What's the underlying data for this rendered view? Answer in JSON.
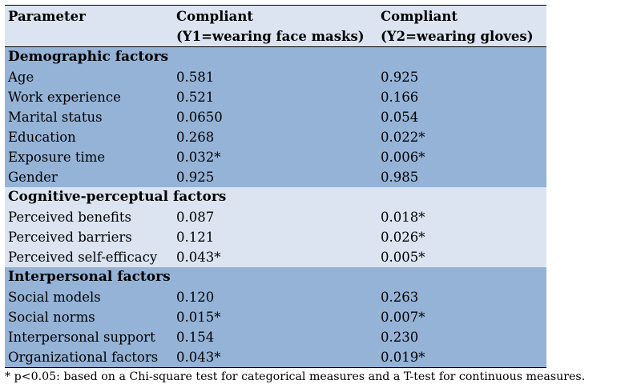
{
  "header": {
    "param": "Parameter",
    "y1_line1": "Compliant",
    "y1_line2": "(Y1=wearing face masks)",
    "y2_line1": "Compliant",
    "y2_line2": "(Y2=wearing gloves)"
  },
  "sections": [
    {
      "title": "Demographic factors",
      "rows": [
        {
          "param": "Age",
          "y1": "0.581",
          "y2": "0.925"
        },
        {
          "param": "Work experience",
          "y1": "0.521",
          "y2": "0.166"
        },
        {
          "param": "Marital status",
          "y1": "0.0650",
          "y2": "0.054"
        },
        {
          "param": "Education",
          "y1": "0.268",
          "y2": "0.022*"
        },
        {
          "param": "Exposure time",
          "y1": "0.032*",
          "y2": "0.006*"
        },
        {
          "param": "Gender",
          "y1": "0.925",
          "y2": "0.985"
        }
      ]
    },
    {
      "title": "Cognitive-perceptual factors",
      "rows": [
        {
          "param": "Perceived benefits",
          "y1": "0.087",
          "y2": "0.018*"
        },
        {
          "param": "Perceived barriers",
          "y1": "0.121",
          "y2": "0.026*"
        },
        {
          "param": "Perceived self-efficacy",
          "y1": "0.043*",
          "y2": "0.005*"
        }
      ]
    },
    {
      "title": "Interpersonal factors",
      "rows": [
        {
          "param": "Social models",
          "y1": "0.120",
          "y2": "0.263"
        },
        {
          "param": "Social norms",
          "y1": "0.015*",
          "y2": "0.007*"
        },
        {
          "param": "Interpersonal support",
          "y1": "0.154",
          "y2": "0.230"
        },
        {
          "param": "Organizational factors",
          "y1": "0.043*",
          "y2": "0.019*"
        }
      ]
    }
  ],
  "footnote": "* p<0.05: based on a Chi-square test for categorical measures and a T-test for continuous measures.",
  "colors": {
    "header_bg": "#dbe4f0",
    "dark_band": "#95b3d7",
    "light_band": "#dbe4f0"
  }
}
